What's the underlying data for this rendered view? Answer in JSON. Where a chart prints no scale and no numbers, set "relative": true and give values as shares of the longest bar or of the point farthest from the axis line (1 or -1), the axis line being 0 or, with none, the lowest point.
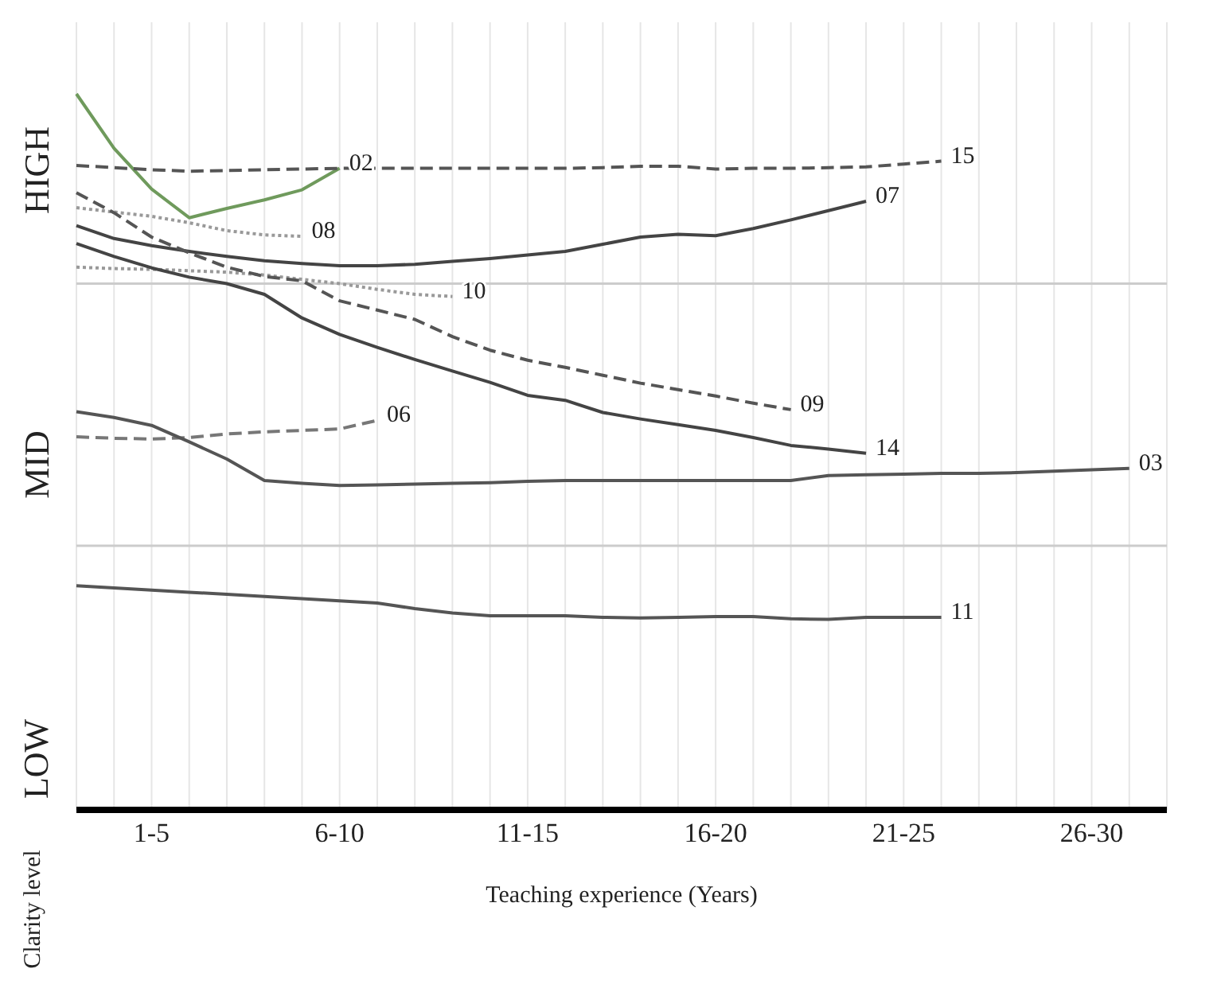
{
  "chart_data": {
    "type": "line",
    "relative": true,
    "grid": "x",
    "xlabel": "Teaching experience (Years)",
    "ylabel": "Clarity level",
    "annotations": [
      "HIGH",
      "MID",
      "LOW"
    ],
    "categories": [
      null,
      null,
      "1-5",
      null,
      null,
      null,
      null,
      "6-10",
      null,
      null,
      null,
      null,
      "11-15",
      null,
      null,
      null,
      null,
      "16-20",
      null,
      null,
      null,
      null,
      "21-25",
      null,
      null,
      null,
      null,
      "26-30",
      null,
      null
    ],
    "ref_lines": [
      {
        "axis": "y",
        "value": 0.735,
        "color": "#cccccc",
        "line_style": "solid"
      },
      {
        "axis": "y",
        "value": 0.369,
        "color": "#cccccc",
        "line_style": "solid"
      }
    ],
    "series": [
      {
        "name": "02",
        "color": "#6f9a5c",
        "line_style": "solid",
        "values": [
          1.0,
          0.924,
          0.867,
          0.827,
          0.84,
          0.852,
          0.866,
          0.896,
          null,
          null,
          null,
          null,
          null,
          null,
          null,
          null,
          null,
          null,
          null,
          null,
          null,
          null,
          null,
          null,
          null,
          null,
          null,
          null,
          null,
          null
        ]
      },
      {
        "name": "15",
        "color": "#555555",
        "line_style": "dashed",
        "values": [
          0.9,
          0.897,
          0.894,
          0.892,
          0.893,
          0.894,
          0.895,
          0.896,
          0.896,
          0.896,
          0.896,
          0.896,
          0.896,
          0.896,
          0.897,
          0.899,
          0.899,
          0.895,
          0.896,
          0.896,
          0.897,
          0.898,
          0.902,
          0.906,
          null,
          null,
          null,
          null,
          null,
          null
        ]
      },
      {
        "name": "07",
        "color": "#444444",
        "line_style": "solid",
        "values": [
          0.816,
          0.798,
          0.788,
          0.78,
          0.773,
          0.767,
          0.763,
          0.76,
          0.76,
          0.762,
          0.766,
          0.77,
          0.775,
          0.78,
          0.79,
          0.8,
          0.804,
          0.802,
          0.812,
          0.824,
          0.837,
          0.85,
          null,
          null,
          null,
          null,
          null,
          null,
          null,
          null
        ]
      },
      {
        "name": "08",
        "color": "#999999",
        "line_style": "dotted",
        "values": [
          0.841,
          0.835,
          0.829,
          0.82,
          0.809,
          0.803,
          0.801,
          null,
          null,
          null,
          null,
          null,
          null,
          null,
          null,
          null,
          null,
          null,
          null,
          null,
          null,
          null,
          null,
          null,
          null,
          null,
          null,
          null,
          null,
          null
        ]
      },
      {
        "name": "10",
        "color": "#999999",
        "line_style": "dotted",
        "values": [
          0.758,
          0.756,
          0.755,
          0.753,
          0.751,
          0.747,
          0.741,
          0.735,
          0.727,
          0.72,
          0.717,
          null,
          null,
          null,
          null,
          null,
          null,
          null,
          null,
          null,
          null,
          null,
          null,
          null,
          null,
          null,
          null,
          null,
          null,
          null
        ]
      },
      {
        "name": "09",
        "color": "#555555",
        "line_style": "dashed",
        "values": [
          0.862,
          0.834,
          0.8,
          0.778,
          0.758,
          0.745,
          0.739,
          0.711,
          0.698,
          0.685,
          0.661,
          0.642,
          0.628,
          0.618,
          0.607,
          0.596,
          0.587,
          0.578,
          0.568,
          0.559,
          null,
          null,
          null,
          null,
          null,
          null,
          null,
          null,
          null,
          null
        ]
      },
      {
        "name": "14",
        "color": "#444444",
        "line_style": "solid",
        "values": [
          0.791,
          0.773,
          0.757,
          0.744,
          0.735,
          0.72,
          0.687,
          0.664,
          0.646,
          0.629,
          0.613,
          0.597,
          0.579,
          0.572,
          0.555,
          0.546,
          0.538,
          0.53,
          0.52,
          0.509,
          0.504,
          0.498,
          null,
          null,
          null,
          null,
          null,
          null,
          null,
          null
        ]
      },
      {
        "name": "06",
        "color": "#777777",
        "line_style": "dashed",
        "values": [
          0.521,
          0.519,
          0.518,
          0.52,
          0.525,
          0.528,
          0.53,
          0.532,
          0.544,
          null,
          null,
          null,
          null,
          null,
          null,
          null,
          null,
          null,
          null,
          null,
          null,
          null,
          null,
          null,
          null,
          null,
          null,
          null,
          null,
          null
        ]
      },
      {
        "name": "03",
        "color": "#555555",
        "line_style": "solid",
        "values": [
          0.556,
          0.548,
          0.537,
          0.514,
          0.49,
          0.46,
          0.456,
          0.453,
          0.454,
          0.455,
          0.456,
          0.457,
          0.459,
          0.46,
          0.46,
          0.46,
          0.46,
          0.46,
          0.46,
          0.46,
          0.467,
          0.468,
          0.469,
          0.47,
          0.47,
          0.471,
          0.473,
          0.475,
          0.477,
          null
        ]
      },
      {
        "name": "11",
        "color": "#555555",
        "line_style": "solid",
        "values": [
          0.313,
          0.31,
          0.307,
          0.304,
          0.301,
          0.298,
          0.295,
          0.292,
          0.289,
          0.281,
          0.275,
          0.271,
          0.271,
          0.271,
          0.269,
          0.268,
          0.269,
          0.27,
          0.27,
          0.267,
          0.266,
          0.269,
          0.269,
          0.269,
          null,
          null,
          null,
          null,
          null,
          null
        ]
      }
    ]
  }
}
